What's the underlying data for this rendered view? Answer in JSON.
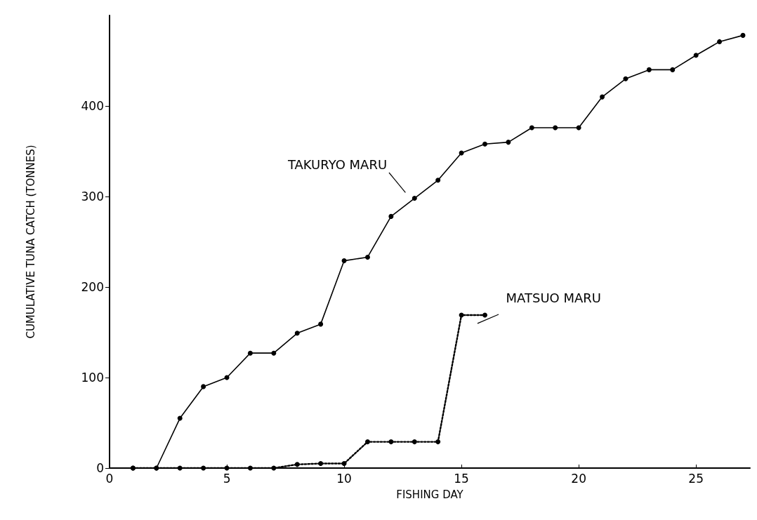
{
  "chart_data": {
    "type": "line",
    "xlabel": "FISHING DAY",
    "ylabel": "CUMULATIVE TUNA CATCH (TONNES)",
    "xlim": [
      0,
      27.3
    ],
    "ylim": [
      0,
      500
    ],
    "xticks": [
      0,
      5,
      10,
      15,
      20,
      25
    ],
    "yticks": [
      0,
      100,
      200,
      300,
      400
    ],
    "grid": false,
    "legend": false,
    "marker": "circle",
    "series": [
      {
        "name": "TAKURYO MARU",
        "color": "#000000",
        "line_style": "solid",
        "x": [
          1,
          2,
          3,
          4,
          5,
          6,
          7,
          8,
          9,
          10,
          11,
          12,
          13,
          14,
          15,
          16,
          17,
          18,
          19,
          20,
          21,
          22,
          23,
          24,
          25,
          26,
          27
        ],
        "values": [
          0,
          0,
          55,
          90,
          100,
          127,
          127,
          149,
          159,
          229,
          233,
          278,
          298,
          318,
          348,
          358,
          360,
          376,
          376,
          376,
          410,
          430,
          440,
          440,
          456,
          471,
          478
        ]
      },
      {
        "name": "MATSUO MARU",
        "color": "#000000",
        "line_style": "dotted",
        "x": [
          1,
          2,
          3,
          4,
          5,
          6,
          7,
          8,
          9,
          10,
          11,
          12,
          13,
          14,
          15,
          16
        ],
        "values": [
          0,
          0,
          0,
          0,
          0,
          0,
          0,
          4,
          5,
          5,
          29,
          29,
          29,
          29,
          169,
          169
        ]
      }
    ]
  }
}
